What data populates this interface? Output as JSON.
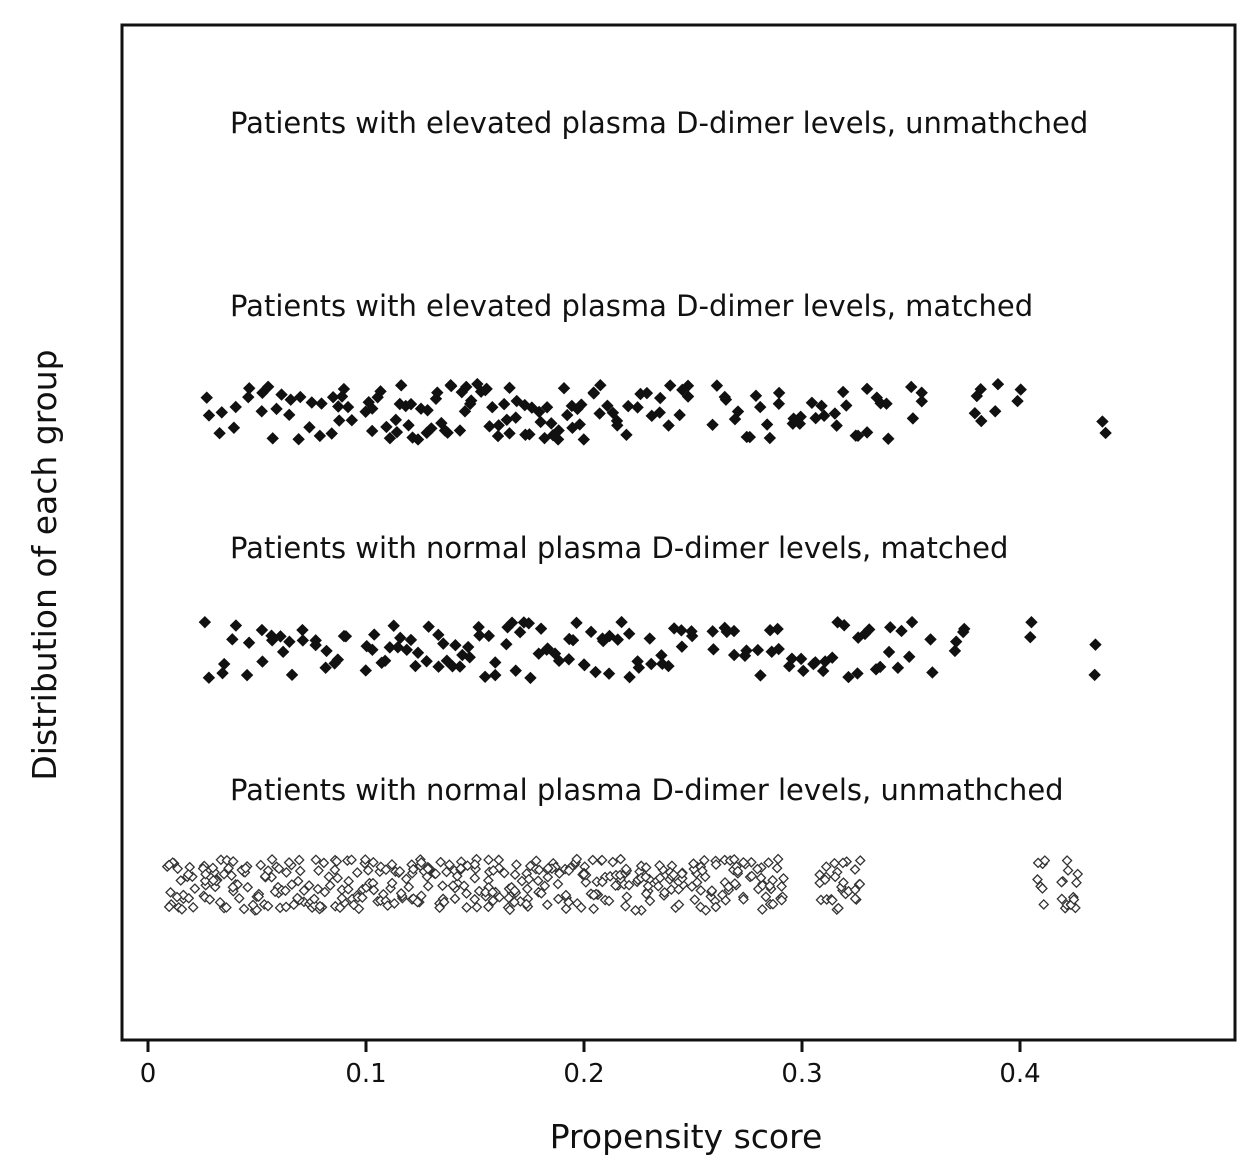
{
  "chart_data": {
    "type": "scatter",
    "xlabel": "Propensity score",
    "ylabel": "Distribution of each group",
    "xlim": [
      -0.006,
      0.49
    ],
    "xticks": [
      0,
      0.1,
      0.2,
      0.3,
      0.4
    ],
    "xtick_labels": [
      "0",
      "0.1",
      "0.2",
      "0.3",
      "0.4"
    ],
    "grid": false,
    "series": [
      {
        "name": "Patients with elevated plasma D-dimer levels, unmathched",
        "marker": "filled-diamond",
        "x": []
      },
      {
        "name": "Patients with elevated plasma D-dimer levels, matched",
        "marker": "filled-diamond",
        "x": [
          0.028,
          0.034,
          0.04,
          0.046,
          0.052,
          0.056,
          0.06,
          0.065,
          0.07,
          0.075,
          0.08,
          0.085,
          0.087,
          0.09,
          0.093,
          0.1,
          0.103,
          0.106,
          0.11,
          0.113,
          0.116,
          0.119,
          0.122,
          0.125,
          0.128,
          0.131,
          0.134,
          0.137,
          0.14,
          0.143,
          0.146,
          0.149,
          0.152,
          0.155,
          0.158,
          0.161,
          0.164,
          0.167,
          0.17,
          0.173,
          0.176,
          0.179,
          0.182,
          0.185,
          0.188,
          0.191,
          0.194,
          0.197,
          0.2,
          0.204,
          0.208,
          0.212,
          0.216,
          0.22,
          0.225,
          0.23,
          0.235,
          0.24,
          0.244,
          0.248,
          0.26,
          0.265,
          0.27,
          0.275,
          0.28,
          0.285,
          0.29,
          0.295,
          0.3,
          0.305,
          0.31,
          0.315,
          0.32,
          0.325,
          0.33,
          0.335,
          0.34,
          0.35,
          0.355,
          0.38,
          0.382,
          0.39,
          0.4,
          0.438
        ]
      },
      {
        "name": "Patients with normal plasma D-dimer levels, matched",
        "marker": "filled-diamond",
        "x": [
          0.027,
          0.034,
          0.04,
          0.046,
          0.052,
          0.058,
          0.062,
          0.066,
          0.072,
          0.078,
          0.082,
          0.086,
          0.09,
          0.1,
          0.104,
          0.108,
          0.112,
          0.116,
          0.12,
          0.124,
          0.128,
          0.132,
          0.136,
          0.14,
          0.144,
          0.148,
          0.152,
          0.156,
          0.16,
          0.164,
          0.168,
          0.172,
          0.176,
          0.18,
          0.184,
          0.188,
          0.192,
          0.196,
          0.2,
          0.204,
          0.208,
          0.212,
          0.216,
          0.22,
          0.225,
          0.23,
          0.235,
          0.24,
          0.245,
          0.25,
          0.26,
          0.265,
          0.27,
          0.275,
          0.28,
          0.285,
          0.29,
          0.295,
          0.3,
          0.305,
          0.31,
          0.315,
          0.32,
          0.325,
          0.33,
          0.335,
          0.34,
          0.345,
          0.35,
          0.36,
          0.37,
          0.375,
          0.405,
          0.435
        ]
      },
      {
        "name": "Patients with normal plasma D-dimer levels, unmathched",
        "marker": "open-diamond",
        "x": [
          0.01,
          0.015,
          0.02,
          0.025,
          0.03,
          0.035,
          0.04,
          0.045,
          0.05,
          0.055,
          0.06,
          0.065,
          0.07,
          0.075,
          0.08,
          0.085,
          0.09,
          0.095,
          0.1,
          0.105,
          0.11,
          0.115,
          0.12,
          0.125,
          0.13,
          0.135,
          0.14,
          0.145,
          0.15,
          0.155,
          0.16,
          0.165,
          0.17,
          0.175,
          0.18,
          0.185,
          0.19,
          0.195,
          0.2,
          0.205,
          0.21,
          0.215,
          0.22,
          0.225,
          0.23,
          0.235,
          0.24,
          0.245,
          0.25,
          0.255,
          0.26,
          0.265,
          0.27,
          0.275,
          0.28,
          0.285,
          0.29,
          0.31,
          0.315,
          0.32,
          0.325,
          0.41,
          0.42,
          0.425
        ]
      }
    ]
  }
}
